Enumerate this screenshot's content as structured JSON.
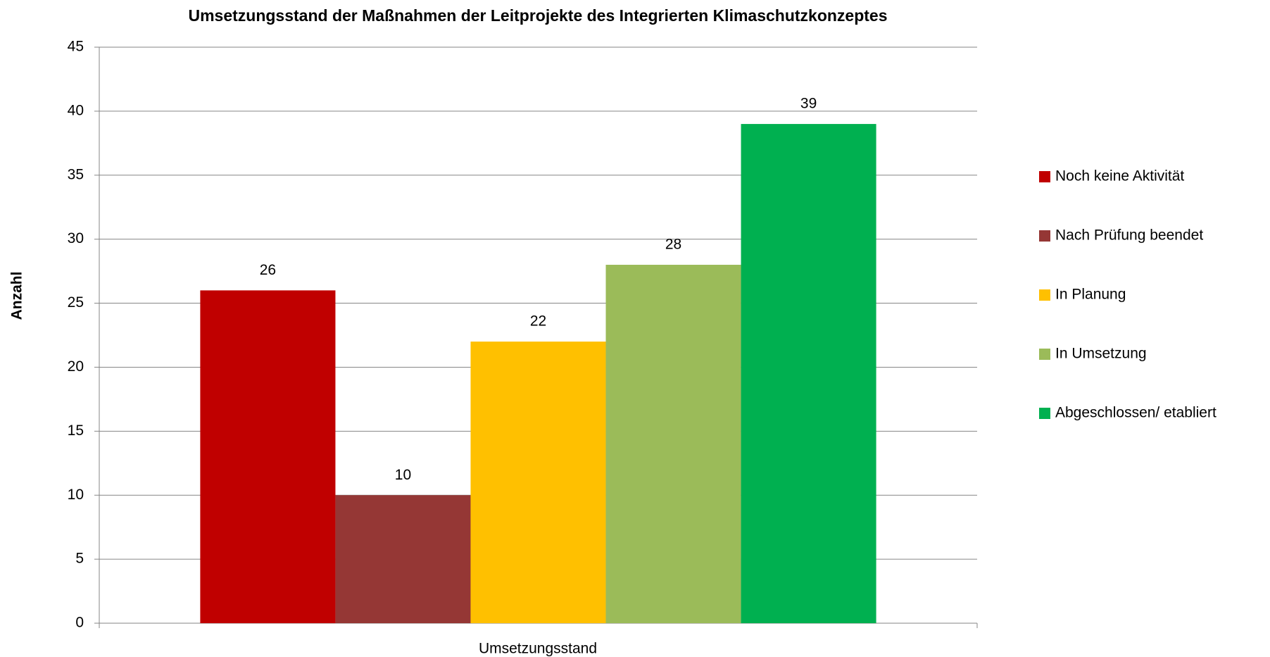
{
  "chart_data": {
    "type": "bar",
    "title": "Umsetzungsstand der Maßnahmen der Leitprojekte des Integrierten Klimaschutzkonzeptes",
    "y_label": "Anzahl",
    "x_label": "Umsetzungsstand",
    "categories": [
      "Umsetzungsstand"
    ],
    "series": [
      {
        "name": "Noch keine Aktivität",
        "color": "#c00000",
        "values": [
          26
        ]
      },
      {
        "name": "Nach Prüfung beendet",
        "color": "#953735",
        "values": [
          10
        ]
      },
      {
        "name": "In Planung",
        "color": "#ffc000",
        "values": [
          22
        ]
      },
      {
        "name": "In Umsetzung",
        "color": "#9bbb59",
        "values": [
          28
        ]
      },
      {
        "name": "Abgeschlossen/ etabliert",
        "color": "#00b050",
        "values": [
          39
        ]
      }
    ],
    "ylim": [
      0,
      45
    ],
    "yticks": [
      0,
      5,
      10,
      15,
      20,
      25,
      30,
      35,
      40,
      45
    ],
    "grid": true,
    "legend": "right"
  }
}
